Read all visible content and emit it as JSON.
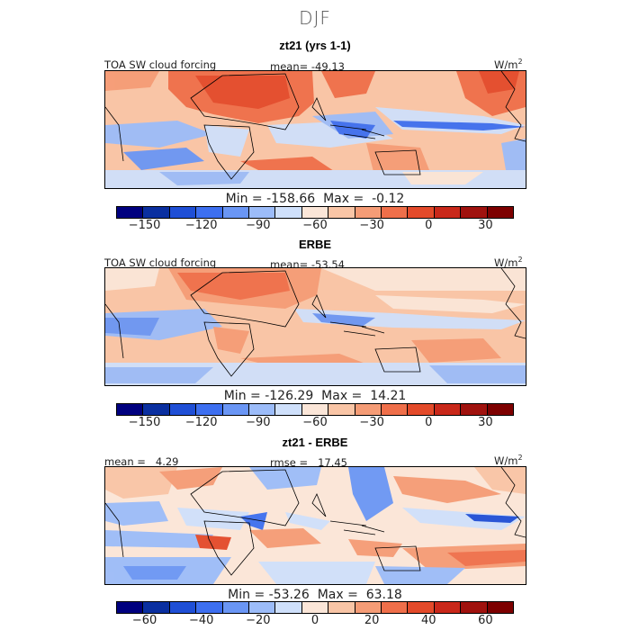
{
  "season": "DJF",
  "chart_data": [
    {
      "type": "heatmap",
      "title": "zt21 (yrs 1-1)",
      "field": "TOA SW cloud forcing",
      "stat_label": "mean=",
      "stat_value": "-49.13",
      "units": "W/m",
      "units_exp": "2",
      "min_label": "Min =",
      "min_value": "-158.66",
      "max_label": "Max =",
      "max_value": "-0.12",
      "levels": [
        -165,
        -150,
        -135,
        -120,
        -105,
        -90,
        -75,
        -60,
        -45,
        -30,
        -15,
        0,
        15,
        30,
        45
      ],
      "tick_labels": [
        "-150",
        "-120",
        "-90",
        "-60",
        "-30",
        "0",
        "30"
      ],
      "tick_values": [
        -150,
        -120,
        -90,
        -60,
        -30,
        0,
        30
      ]
    },
    {
      "type": "heatmap",
      "title": "ERBE",
      "field": "TOA SW cloud forcing",
      "stat_label": "mean=",
      "stat_value": "-53.54",
      "units": "W/m",
      "units_exp": "2",
      "min_label": "Min =",
      "min_value": "-126.29",
      "max_label": "Max =",
      "max_value": "14.21",
      "levels": [
        -165,
        -150,
        -135,
        -120,
        -105,
        -90,
        -75,
        -60,
        -45,
        -30,
        -15,
        0,
        15,
        30,
        45
      ],
      "tick_labels": [
        "-150",
        "-120",
        "-90",
        "-60",
        "-30",
        "0",
        "30"
      ],
      "tick_values": [
        -150,
        -120,
        -90,
        -60,
        -30,
        0,
        30
      ]
    },
    {
      "type": "heatmap",
      "title": "zt21 - ERBE",
      "field": "",
      "stat_label": "mean =",
      "stat_value": "4.29",
      "stat2_label": "rmse =",
      "stat2_value": "17.45",
      "units": "W/m",
      "units_exp": "2",
      "min_label": "Min =",
      "min_value": "-53.26",
      "max_label": "Max =",
      "max_value": "63.18",
      "levels": [
        -70,
        -60,
        -50,
        -40,
        -30,
        -20,
        -10,
        0,
        10,
        20,
        30,
        40,
        50,
        60,
        70
      ],
      "tick_labels": [
        "-60",
        "-40",
        "-20",
        "0",
        "20",
        "40",
        "60"
      ],
      "tick_values": [
        -60,
        -40,
        -20,
        0,
        20,
        40,
        60
      ]
    }
  ],
  "palette": [
    "#00007f",
    "#0a2fa0",
    "#1f4fd6",
    "#3d6ff0",
    "#6a96f5",
    "#9cbcf9",
    "#cfe0fb",
    "#fbe6d8",
    "#f9c5a6",
    "#f59c76",
    "#ef6f4a",
    "#e34a2a",
    "#c9281a",
    "#a0120e",
    "#7d0000"
  ]
}
